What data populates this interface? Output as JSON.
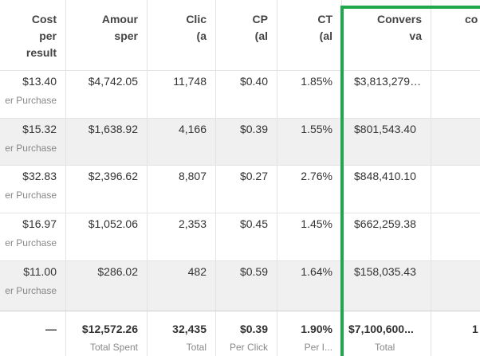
{
  "headers": [
    [
      "Cost",
      "per",
      "result"
    ],
    [
      "Amour",
      "sper"
    ],
    [
      "Clic",
      "(a"
    ],
    [
      "CP",
      "(al"
    ],
    [
      "CT",
      "(al"
    ],
    [
      "Convers",
      "va"
    ],
    [
      "co"
    ]
  ],
  "rows": [
    {
      "cells": [
        "$13.40",
        "$4,742.05",
        "11,748",
        "$0.40",
        "1.85%",
        "$3,813,279…"
      ],
      "cost_label": "er Purchase"
    },
    {
      "cells": [
        "$15.32",
        "$1,638.92",
        "4,166",
        "$0.39",
        "1.55%",
        "$801,543.40"
      ],
      "cost_label": "er Purchase"
    },
    {
      "cells": [
        "$32.83",
        "$2,396.62",
        "8,807",
        "$0.27",
        "2.76%",
        "$848,410.10"
      ],
      "cost_label": "er Purchase"
    },
    {
      "cells": [
        "$16.97",
        "$1,052.06",
        "2,353",
        "$0.45",
        "1.45%",
        "$662,259.38"
      ],
      "cost_label": "er Purchase"
    },
    {
      "cells": [
        "$11.00",
        "$286.02",
        "482",
        "$0.59",
        "1.64%",
        "$158,035.43"
      ],
      "cost_label": "er Purchase"
    }
  ],
  "totals": [
    {
      "value": "—"
    },
    {
      "value": "$12,572.26",
      "label": "Total Spent"
    },
    {
      "value": "32,435",
      "label": "Total"
    },
    {
      "value": "$0.39",
      "label": "Per Click"
    },
    {
      "value": "1.90%",
      "label": "Per I..."
    },
    {
      "value": "$7,100,600...",
      "label": "Total"
    },
    {
      "value": "1"
    }
  ]
}
